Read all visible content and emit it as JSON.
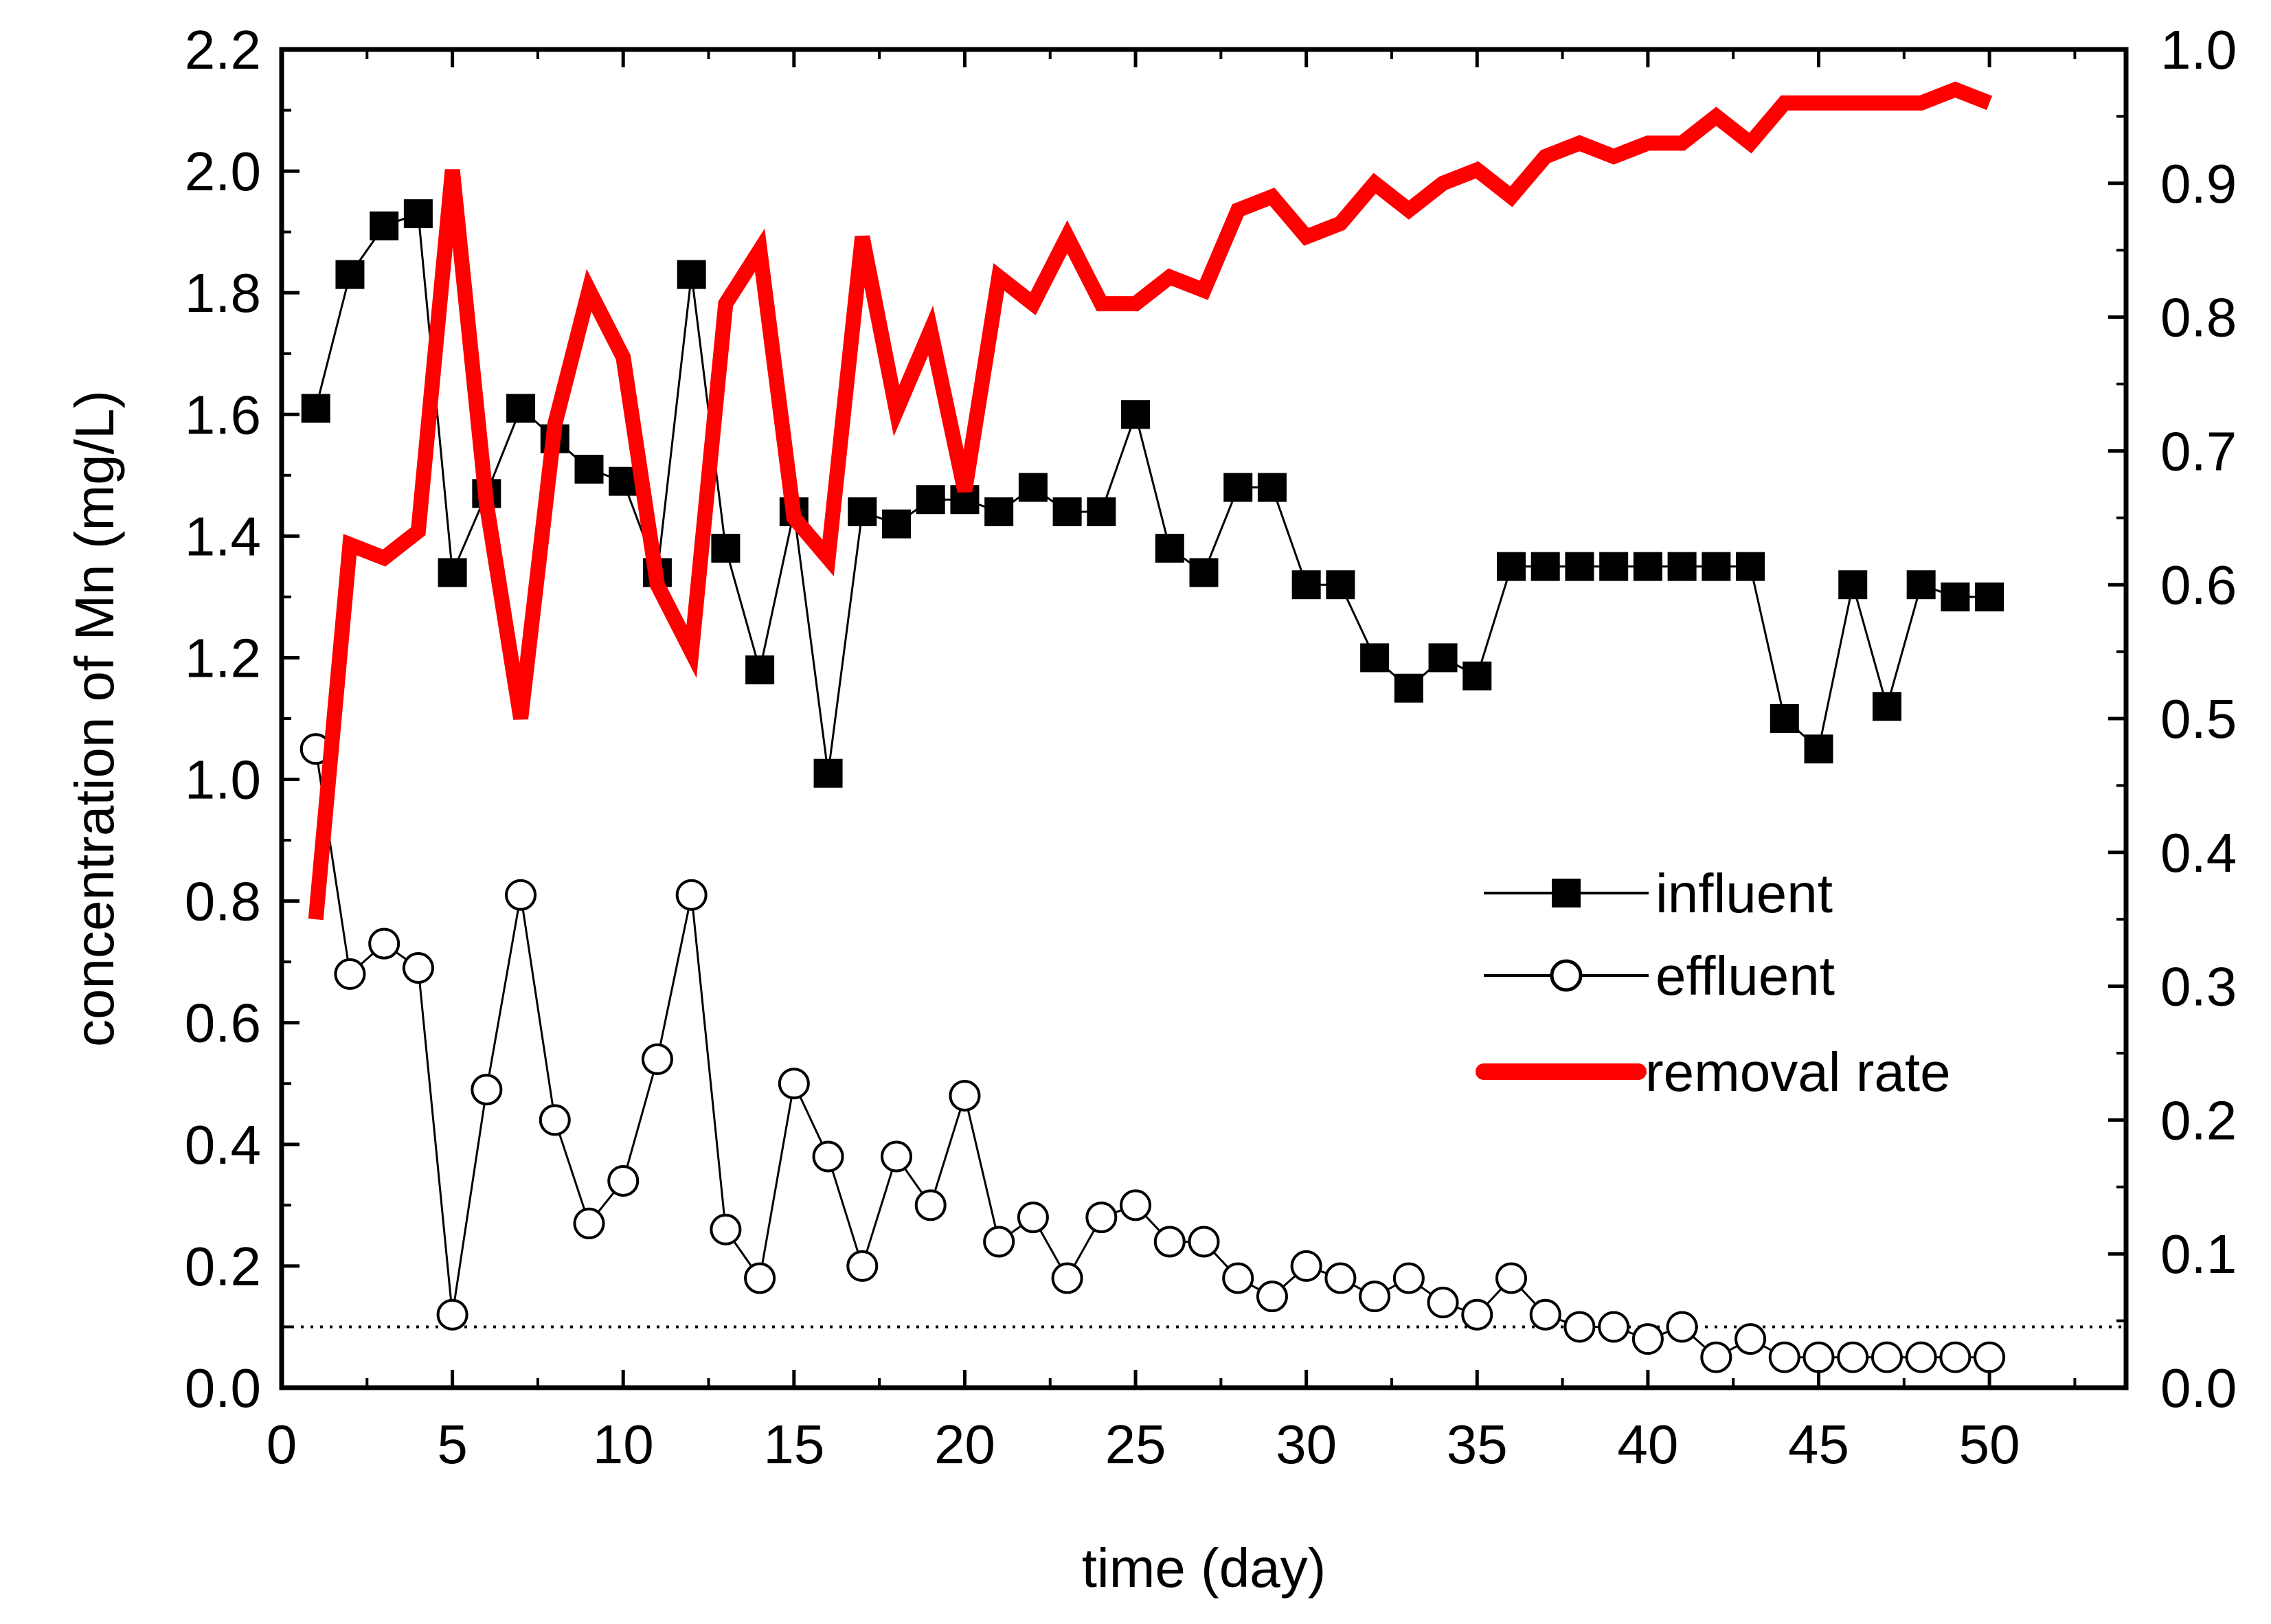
{
  "chart_data": {
    "type": "line",
    "title": "",
    "xlabel": "time (day)",
    "ylabel": "concentration of Mn (mg/L)",
    "y2label": "",
    "xlim": [
      0,
      54
    ],
    "ylim": [
      0,
      2.2
    ],
    "y2lim": [
      0,
      1.0
    ],
    "xticks": [
      "0",
      "5",
      "10",
      "15",
      "20",
      "25",
      "30",
      "35",
      "40",
      "45",
      "50"
    ],
    "yticks": [
      "0.0",
      "0.2",
      "0.4",
      "0.6",
      "0.8",
      "1.0",
      "1.2",
      "1.4",
      "1.6",
      "1.8",
      "2.0",
      "2.2"
    ],
    "y2ticks": [
      "0.0",
      "0.1",
      "0.2",
      "0.3",
      "0.4",
      "0.5",
      "0.6",
      "0.7",
      "0.8",
      "0.9",
      "1.0"
    ],
    "reference_line": {
      "y": 0.1,
      "style": "dotted"
    },
    "legend_position": "right-center",
    "x": [
      1,
      2,
      3,
      4,
      5,
      6,
      7,
      8,
      9,
      10,
      11,
      12,
      13,
      14,
      15,
      16,
      17,
      18,
      19,
      20,
      21,
      22,
      23,
      24,
      25,
      26,
      27,
      28,
      29,
      30,
      31,
      32,
      33,
      34,
      35,
      36,
      37,
      38,
      39,
      40,
      41,
      42,
      43,
      44,
      45,
      46,
      47,
      48,
      49,
      50
    ],
    "series": [
      {
        "name": "influent",
        "axis": "left",
        "marker": "filled-square",
        "color": "#000000",
        "values": [
          1.61,
          1.83,
          1.91,
          1.93,
          1.34,
          1.47,
          1.61,
          1.56,
          1.51,
          1.49,
          1.34,
          1.83,
          1.38,
          1.18,
          1.44,
          1.01,
          1.44,
          1.42,
          1.46,
          1.46,
          1.44,
          1.48,
          1.44,
          1.44,
          1.6,
          1.38,
          1.34,
          1.48,
          1.48,
          1.32,
          1.32,
          1.2,
          1.15,
          1.2,
          1.17,
          1.35,
          1.35,
          1.35,
          1.35,
          1.35,
          1.35,
          1.35,
          1.35,
          1.1,
          1.05,
          1.32,
          1.12,
          1.32,
          1.3,
          1.3
        ]
      },
      {
        "name": "effluent",
        "axis": "left",
        "marker": "open-circle",
        "color": "#000000",
        "values": [
          1.05,
          0.68,
          0.73,
          0.69,
          0.12,
          0.49,
          0.81,
          0.44,
          0.27,
          0.34,
          0.54,
          0.81,
          0.26,
          0.18,
          0.5,
          0.38,
          0.2,
          0.38,
          0.3,
          0.48,
          0.24,
          0.28,
          0.18,
          0.28,
          0.3,
          0.24,
          0.24,
          0.18,
          0.15,
          0.2,
          0.18,
          0.15,
          0.18,
          0.14,
          0.12,
          0.18,
          0.12,
          0.1,
          0.1,
          0.08,
          0.1,
          0.05,
          0.08,
          0.05,
          0.05,
          0.05,
          0.05,
          0.05,
          0.05,
          0.05
        ]
      },
      {
        "name": "removal rate",
        "axis": "right",
        "marker": "none",
        "color": "#ff0000",
        "values": [
          0.35,
          0.63,
          0.62,
          0.64,
          0.91,
          0.66,
          0.5,
          0.72,
          0.82,
          0.77,
          0.6,
          0.55,
          0.81,
          0.85,
          0.65,
          0.62,
          0.86,
          0.73,
          0.79,
          0.67,
          0.83,
          0.81,
          0.86,
          0.81,
          0.81,
          0.83,
          0.82,
          0.88,
          0.89,
          0.86,
          0.87,
          0.9,
          0.88,
          0.9,
          0.91,
          0.89,
          0.92,
          0.93,
          0.92,
          0.93,
          0.93,
          0.95,
          0.93,
          0.96,
          0.96,
          0.96,
          0.96,
          0.96,
          0.97,
          0.96
        ]
      }
    ]
  }
}
